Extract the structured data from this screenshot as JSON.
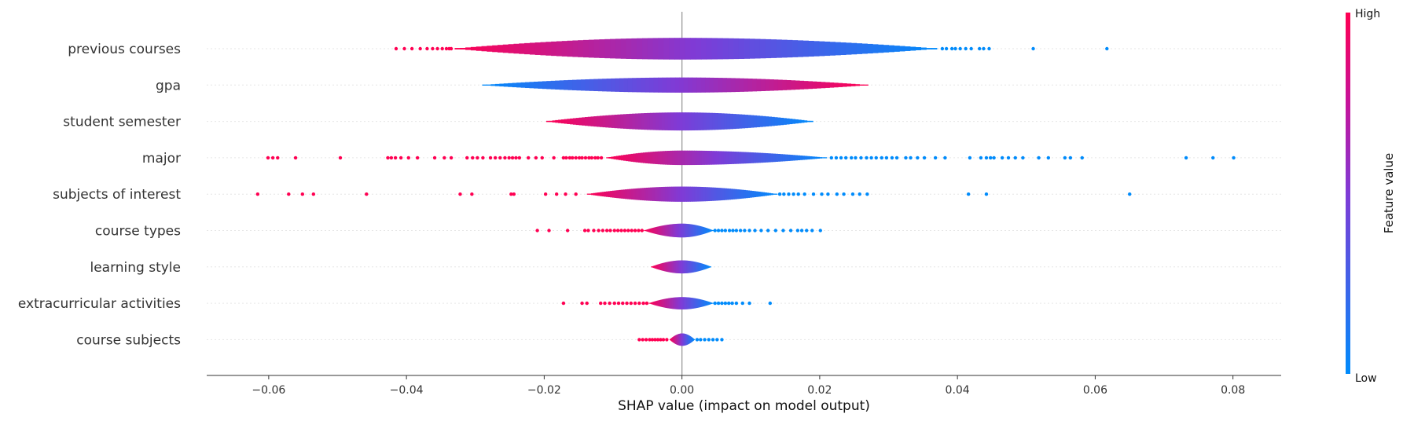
{
  "chart_data": {
    "type": "violin",
    "xlabel": "SHAP value (impact on model output)",
    "xlim": [
      -0.069,
      0.087
    ],
    "xticks": [
      -0.06,
      -0.04,
      -0.02,
      0.0,
      0.02,
      0.04,
      0.06,
      0.08
    ],
    "xtick_labels": [
      "−0.06",
      "−0.04",
      "−0.02",
      "0.00",
      "0.02",
      "0.04",
      "0.06",
      "0.08"
    ],
    "colorbar": {
      "title": "Feature value",
      "high_label": "High",
      "low_label": "Low",
      "high_color": "#ff0052",
      "low_color": "#008bfb"
    },
    "features": [
      {
        "name": "previous courses",
        "violin_range": [
          -0.033,
          0.037
        ],
        "max_halfwidth": 0.6,
        "color_low_side": "high",
        "split": 0.0,
        "outliers_low": [
          -0.0415,
          -0.0403,
          -0.0392,
          -0.038,
          -0.037,
          -0.0362,
          -0.0355,
          -0.0348,
          -0.0342,
          -0.0338,
          -0.0335
        ],
        "outliers_high": [
          0.0378,
          0.0384,
          0.0392,
          0.0397,
          0.0404,
          0.0412,
          0.042,
          0.0432,
          0.0438,
          0.0446,
          0.051,
          0.0617
        ]
      },
      {
        "name": "gpa",
        "violin_range": [
          -0.029,
          0.027
        ],
        "max_halfwidth": 0.42,
        "color_low_side": "low",
        "split": -0.003,
        "outliers_low": [],
        "outliers_high": []
      },
      {
        "name": "student semester",
        "violin_range": [
          -0.0197,
          0.019
        ],
        "max_halfwidth": 0.5,
        "color_low_side": "high",
        "split": 0.0,
        "outliers_low": [],
        "outliers_high": []
      },
      {
        "name": "major",
        "violin_range": [
          -0.011,
          0.021
        ],
        "max_halfwidth": 0.4,
        "color_low_side": "high",
        "split": 0.0,
        "outliers_low": [
          -0.0601,
          -0.0594,
          -0.0587,
          -0.0561,
          -0.0496,
          -0.0427,
          -0.0422,
          -0.0416,
          -0.0408,
          -0.0397,
          -0.0384,
          -0.0359,
          -0.0345,
          -0.0335,
          -0.0312,
          -0.0304,
          -0.0297,
          -0.0289,
          -0.0278,
          -0.0271,
          -0.0264,
          -0.0257,
          -0.0251,
          -0.0246,
          -0.0241,
          -0.0236,
          -0.0223,
          -0.0212,
          -0.0203,
          -0.0186,
          -0.0172,
          -0.0168,
          -0.0163,
          -0.0159,
          -0.0154,
          -0.0149,
          -0.0145,
          -0.014,
          -0.0135,
          -0.0131,
          -0.0126,
          -0.0122,
          -0.0117
        ],
        "outliers_high": [
          0.0217,
          0.0224,
          0.0231,
          0.0238,
          0.0246,
          0.0252,
          0.026,
          0.0268,
          0.0275,
          0.0282,
          0.029,
          0.0297,
          0.0305,
          0.0312,
          0.0325,
          0.0332,
          0.0342,
          0.0352,
          0.0368,
          0.0382,
          0.0418,
          0.0434,
          0.0442,
          0.0448,
          0.0453,
          0.0465,
          0.0474,
          0.0484,
          0.0495,
          0.0518,
          0.0532,
          0.0556,
          0.0564,
          0.0581,
          0.0732,
          0.0771,
          0.0801
        ]
      },
      {
        "name": "subjects of interest",
        "violin_range": [
          -0.0138,
          0.0138
        ],
        "max_halfwidth": 0.42,
        "color_low_side": "high",
        "split": -0.0138,
        "outliers_low": [
          -0.0616,
          -0.0571,
          -0.0551,
          -0.0535,
          -0.0458,
          -0.0322,
          -0.0305,
          -0.0248,
          -0.0244,
          -0.0198,
          -0.0182,
          -0.0169,
          -0.0154
        ],
        "outliers_high": [
          0.0142,
          0.0148,
          0.0155,
          0.0162,
          0.0169,
          0.0178,
          0.0191,
          0.0203,
          0.0212,
          0.0225,
          0.0235,
          0.0248,
          0.0258,
          0.0269,
          0.0416,
          0.0442,
          0.065
        ]
      },
      {
        "name": "course types",
        "violin_range": [
          -0.0055,
          0.0045
        ],
        "max_halfwidth": 0.38,
        "color_low_side": "high",
        "split": -0.0055,
        "outliers_low": [
          -0.021,
          -0.0193,
          -0.0166,
          -0.0141,
          -0.0136,
          -0.0128,
          -0.0121,
          -0.0115,
          -0.0109,
          -0.0104,
          -0.0098,
          -0.0093,
          -0.0088,
          -0.0083,
          -0.0078,
          -0.0073,
          -0.0068,
          -0.0063,
          -0.0058
        ],
        "outliers_high": [
          0.0048,
          0.0053,
          0.0058,
          0.0063,
          0.0069,
          0.0074,
          0.0079,
          0.0085,
          0.0091,
          0.0098,
          0.0106,
          0.0115,
          0.0125,
          0.0136,
          0.0147,
          0.0158,
          0.0168,
          0.0174,
          0.0181,
          0.0189,
          0.0201
        ]
      },
      {
        "name": "learning style",
        "violin_range": [
          -0.0045,
          0.0042
        ],
        "max_halfwidth": 0.36,
        "color_low_side": "high",
        "split": 0.0,
        "outliers_low": [],
        "outliers_high": []
      },
      {
        "name": "extracurricular activities",
        "violin_range": [
          -0.0048,
          0.0045
        ],
        "max_halfwidth": 0.34,
        "color_low_side": "high",
        "split": -0.0048,
        "outliers_low": [
          -0.0172,
          -0.0145,
          -0.0138,
          -0.0118,
          -0.0112,
          -0.0105,
          -0.0098,
          -0.0092,
          -0.0086,
          -0.008,
          -0.0074,
          -0.0068,
          -0.0062,
          -0.0056,
          -0.0051
        ],
        "outliers_high": [
          0.0048,
          0.0053,
          0.0058,
          0.0063,
          0.0068,
          0.0073,
          0.0079,
          0.0088,
          0.0098,
          0.0128
        ]
      },
      {
        "name": "course subjects",
        "violin_range": [
          -0.0018,
          0.0018
        ],
        "max_halfwidth": 0.34,
        "color_low_side": "high",
        "split": -0.0018,
        "outliers_low": [
          -0.0062,
          -0.0057,
          -0.0052,
          -0.0047,
          -0.0043,
          -0.0039,
          -0.0035,
          -0.0031,
          -0.0027,
          -0.0022
        ],
        "outliers_high": [
          0.0022,
          0.0027,
          0.0033,
          0.0039,
          0.0045,
          0.0051,
          0.0058
        ]
      }
    ]
  }
}
